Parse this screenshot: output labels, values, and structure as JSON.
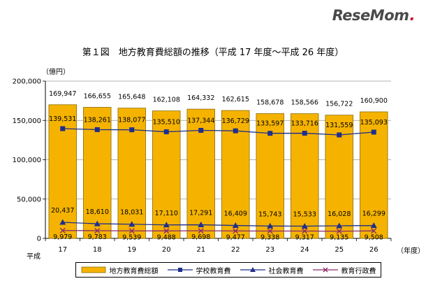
{
  "brand": {
    "logo_text": "ReseMom",
    "logo_mark": "."
  },
  "chart_data": {
    "type": "bar",
    "title": "第１図　地方教育費総額の推移（平成 17 年度～平成 26 年度）",
    "ylabel": "（億円）",
    "xlabel": "（年度）",
    "era_label": "平成",
    "ylim": [
      0,
      200000
    ],
    "yticks": [
      0,
      50000,
      100000,
      150000,
      200000
    ],
    "ytick_labels": [
      "0",
      "50,000",
      "100,000",
      "150,000",
      "200,000"
    ],
    "categories": [
      "17",
      "18",
      "19",
      "20",
      "21",
      "22",
      "23",
      "24",
      "25",
      "26"
    ],
    "series": [
      {
        "name": "地方教育費総額",
        "kind": "bar",
        "color": "#f5b300",
        "values": [
          169947,
          166655,
          165648,
          162108,
          164332,
          162615,
          158678,
          158566,
          156722,
          160900
        ],
        "labels": [
          "169,947",
          "166,655",
          "165,648",
          "162,108",
          "164,332",
          "162,615",
          "158,678",
          "158,566",
          "156,722",
          "160,900"
        ]
      },
      {
        "name": "学校教育費",
        "kind": "line",
        "marker": "square",
        "color": "#1f2f8c",
        "values": [
          139531,
          138261,
          138077,
          135510,
          137344,
          136729,
          133597,
          133716,
          131559,
          135093
        ],
        "labels": [
          "139,531",
          "138,261",
          "138,077",
          "135,510",
          "137,344",
          "136,729",
          "133,597",
          "133,716",
          "131,559",
          "135,093"
        ]
      },
      {
        "name": "社会教育費",
        "kind": "line",
        "marker": "triangle",
        "color": "#1f2f8c",
        "values": [
          20437,
          18610,
          18031,
          17110,
          17291,
          16409,
          15743,
          15533,
          16028,
          16299
        ],
        "labels": [
          "20,437",
          "18,610",
          "18,031",
          "17,110",
          "17,291",
          "16,409",
          "15,743",
          "15,533",
          "16,028",
          "16,299"
        ]
      },
      {
        "name": "教育行政費",
        "kind": "line",
        "marker": "x",
        "color": "#8b2a6b",
        "values": [
          9979,
          9783,
          9539,
          9488,
          9698,
          9477,
          9338,
          9317,
          9135,
          9508
        ],
        "labels": [
          "9,979",
          "9,783",
          "9,539",
          "9,488",
          "9,698",
          "9,477",
          "9,338",
          "9,317",
          "9,135",
          "9,508"
        ]
      }
    ],
    "legend_position": "bottom"
  }
}
